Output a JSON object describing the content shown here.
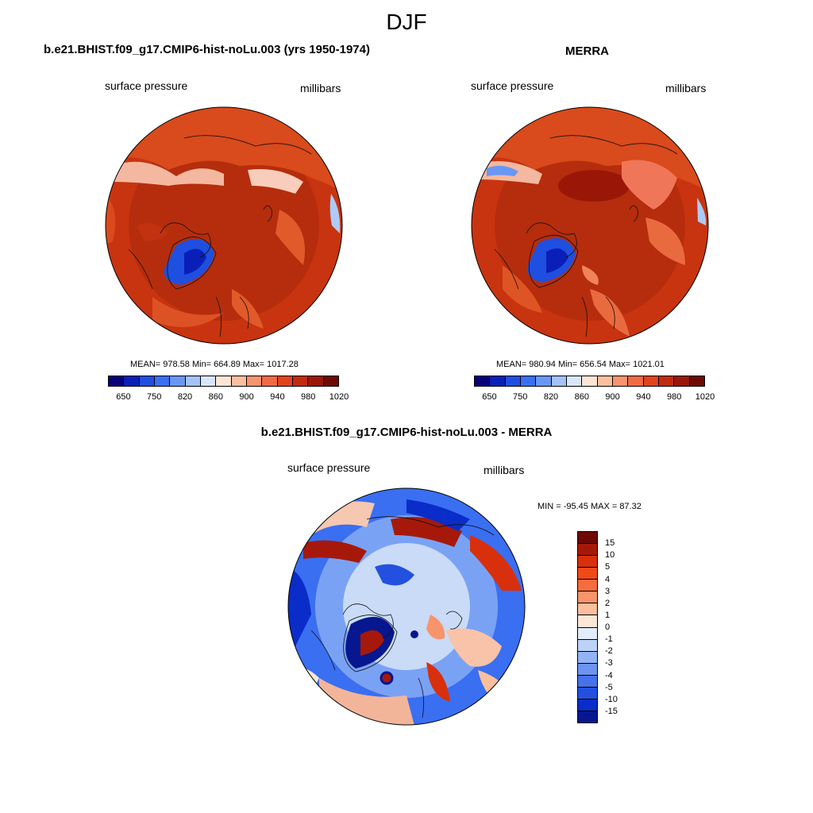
{
  "season": "DJF",
  "panels": [
    {
      "title": "b.e21.BHIST.f09_g17.CMIP6-hist-noLu.003 (yrs 1950-1974)",
      "variable": "surface pressure",
      "units": "millibars",
      "stats": "MEAN= 978.58  Min= 664.89  Max= 1017.28"
    },
    {
      "title": "MERRA",
      "variable": "surface pressure",
      "units": "millibars",
      "stats": "MEAN= 980.94  Min= 656.54  Max= 1021.01"
    }
  ],
  "diff_panel": {
    "title": "b.e21.BHIST.f09_g17.CMIP6-hist-noLu.003 - MERRA",
    "variable": "surface pressure",
    "units": "millibars",
    "stats": "MIN = -95.45 MAX =  87.32"
  },
  "colorbar_abs": {
    "colors": [
      "#08007a",
      "#0a1fb8",
      "#1f4fe0",
      "#3a6ff2",
      "#6a96f6",
      "#a4c2f8",
      "#d8e6fa",
      "#fde4d4",
      "#fbbfa0",
      "#f7946e",
      "#f06a45",
      "#e2431f",
      "#c22a0c",
      "#9a1708",
      "#6d0a04"
    ],
    "labels": [
      "650",
      "750",
      "820",
      "860",
      "900",
      "940",
      "980",
      "1020"
    ]
  },
  "colorbar_diff": {
    "colors": [
      "#6d0a04",
      "#a6190a",
      "#d8300c",
      "#f04a18",
      "#f56d3e",
      "#f8946b",
      "#fbbf9d",
      "#fde6d6",
      "#e2ecfa",
      "#bcd2f8",
      "#93b4f4",
      "#6c94f0",
      "#4672ea",
      "#2450e0",
      "#0a2cc8",
      "#06178f"
    ],
    "labels": [
      "15",
      "10",
      "5",
      "4",
      "3",
      "2",
      "1",
      "0",
      "-1",
      "-2",
      "-3",
      "-4",
      "-5",
      "-10",
      "-15"
    ]
  },
  "map_colors": {
    "base_abs": "#b52d0d",
    "base_diff": "#c9dbf6"
  }
}
